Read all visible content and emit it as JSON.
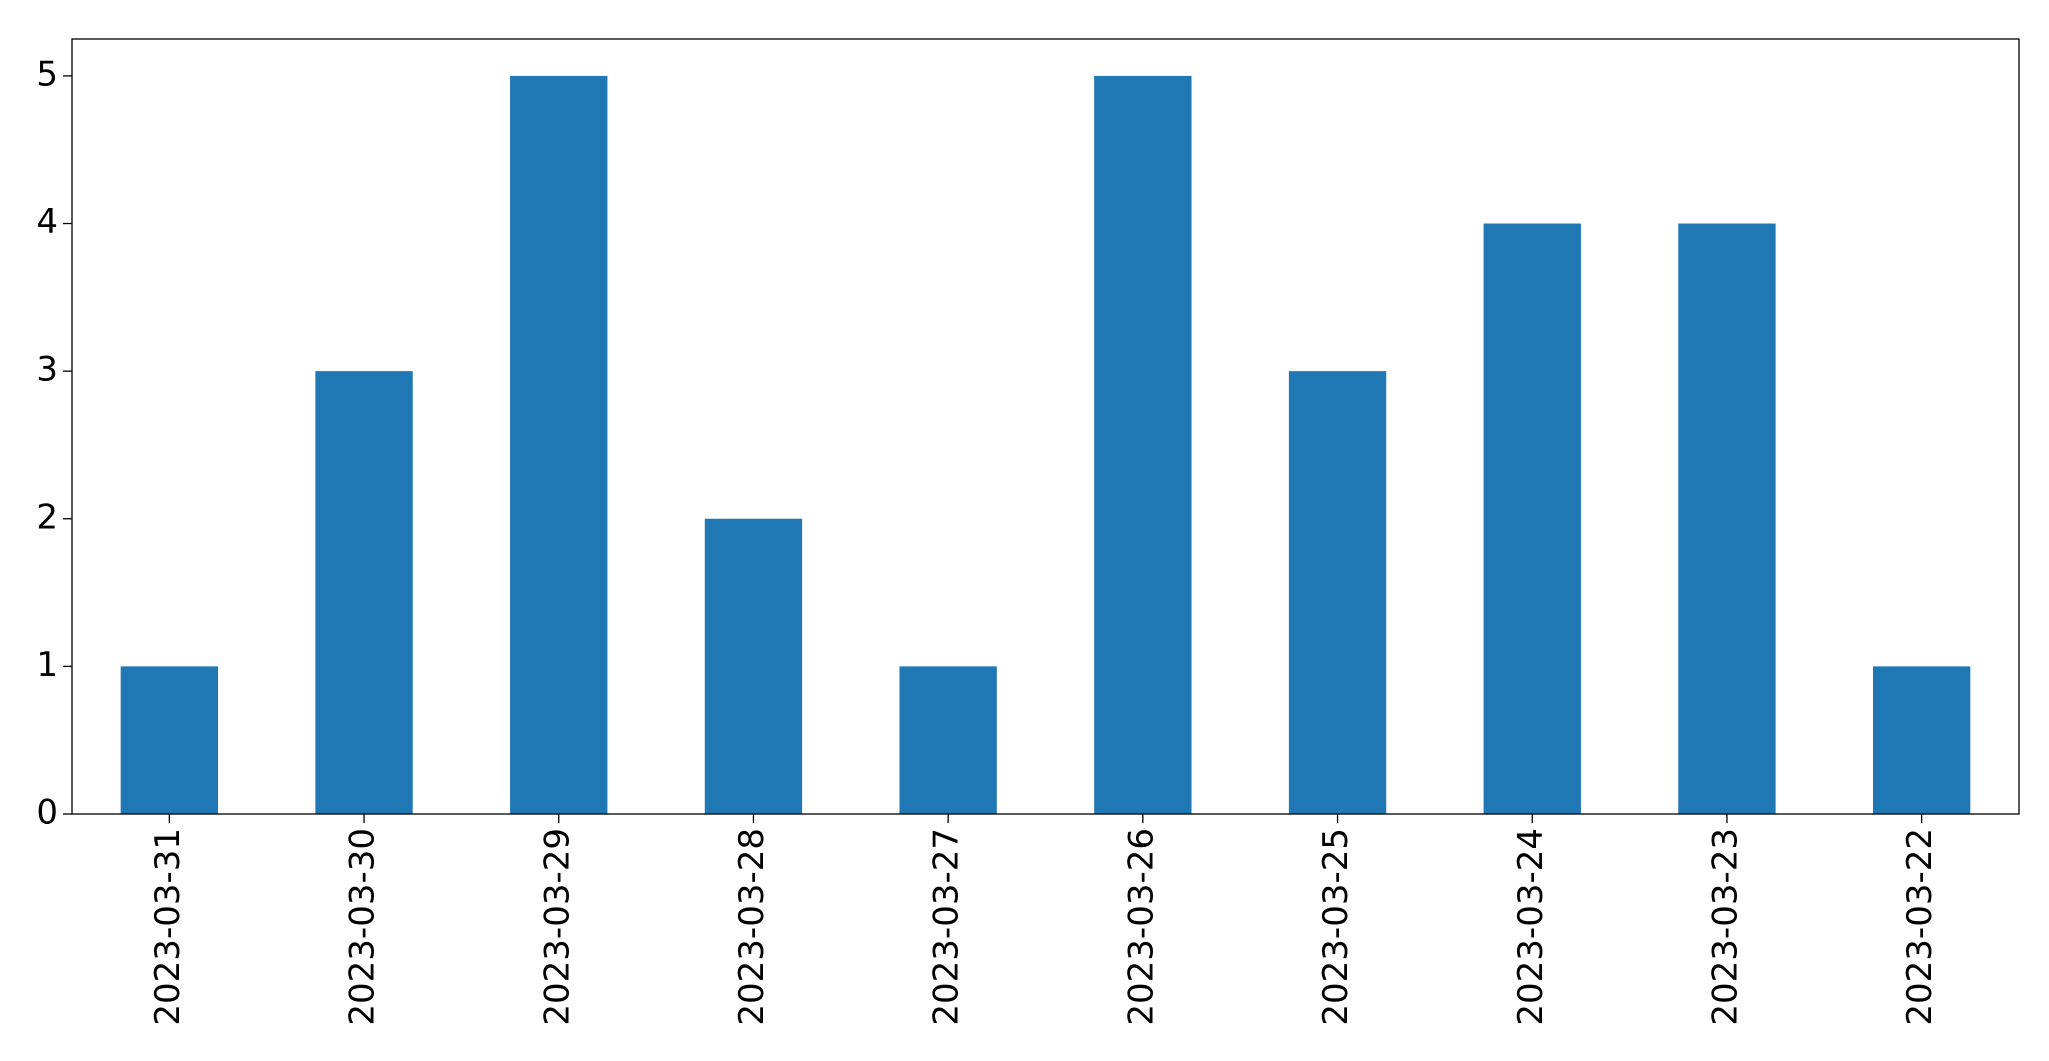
{
  "chart_data": {
    "type": "bar",
    "categories": [
      "2023-03-31",
      "2023-03-30",
      "2023-03-29",
      "2023-03-28",
      "2023-03-27",
      "2023-03-26",
      "2023-03-25",
      "2023-03-24",
      "2023-03-23",
      "2023-03-22"
    ],
    "values": [
      1,
      3,
      5,
      2,
      1,
      5,
      3,
      4,
      4,
      1
    ],
    "color": "#1f77b4",
    "ylim": [
      0,
      5.25
    ],
    "yticks": [
      0,
      1,
      2,
      3,
      4,
      5
    ],
    "grid": false
  }
}
